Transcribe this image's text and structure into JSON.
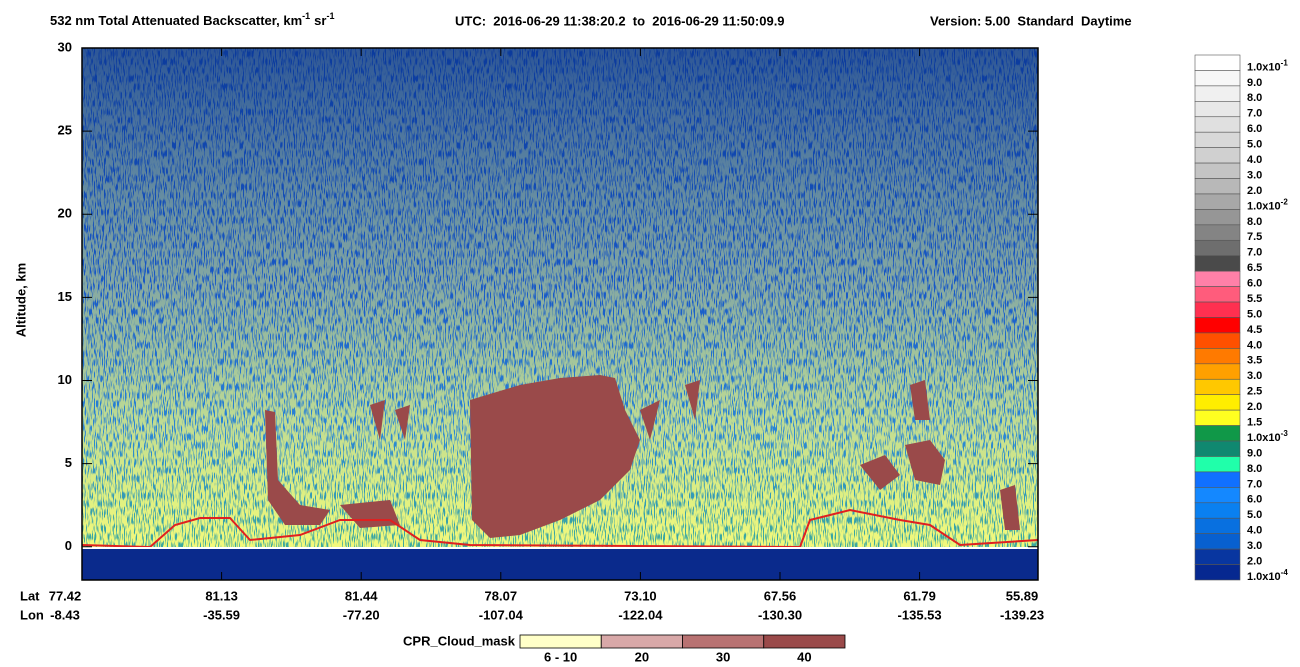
{
  "chart_data": {
    "type": "curtain",
    "title": "532 nm Total Attenuated Backscatter, km",
    "title_sup1": "-1",
    "title_mid": "sr",
    "title_sup2": "-1",
    "time_range": "UTC:  2016-06-29 11:38:20.2  to  2016-06-29 11:50:09.9",
    "version": "Version: 5.00  Standard  Daytime",
    "ylabel": "Altitude, km",
    "ylim": [
      -2,
      30
    ],
    "yticks": [
      0,
      5,
      10,
      15,
      20,
      25,
      30
    ],
    "x_row_labels": [
      "Lat",
      "Lon"
    ],
    "lat": [
      "77.42",
      "81.13",
      "81.44",
      "78.07",
      "73.10",
      "67.56",
      "61.79",
      "55.89"
    ],
    "lon": [
      "-8.43",
      "-35.59",
      "-77.20",
      "-107.04",
      "-122.04",
      "-130.30",
      "-135.53",
      "-139.23"
    ],
    "colorbar": [
      {
        "label": "1.0x10",
        "exp": "-1"
      },
      {
        "label": "9.0"
      },
      {
        "label": "8.0"
      },
      {
        "label": "7.0"
      },
      {
        "label": "6.0"
      },
      {
        "label": "5.0"
      },
      {
        "label": "4.0"
      },
      {
        "label": "3.0"
      },
      {
        "label": "2.0"
      },
      {
        "label": "1.0x10",
        "exp": "-2"
      },
      {
        "label": "8.0"
      },
      {
        "label": "7.5"
      },
      {
        "label": "7.0"
      },
      {
        "label": "6.5"
      },
      {
        "label": "6.0"
      },
      {
        "label": "5.5"
      },
      {
        "label": "5.0"
      },
      {
        "label": "4.5"
      },
      {
        "label": "4.0"
      },
      {
        "label": "3.5"
      },
      {
        "label": "3.0"
      },
      {
        "label": "2.5"
      },
      {
        "label": "2.0"
      },
      {
        "label": "1.5"
      },
      {
        "label": "1.0x10",
        "exp": "-3"
      },
      {
        "label": "9.0"
      },
      {
        "label": "8.0"
      },
      {
        "label": "7.0"
      },
      {
        "label": "6.0"
      },
      {
        "label": "5.0"
      },
      {
        "label": "4.0"
      },
      {
        "label": "3.0"
      },
      {
        "label": "2.0"
      },
      {
        "label": "1.0x10",
        "exp": "-4"
      }
    ],
    "colorbar_colors": [
      "#ffffff",
      "#f7f7f7",
      "#f0f0f0",
      "#e8e8e8",
      "#e0e0e0",
      "#d8d8d8",
      "#d0d0d0",
      "#c4c4c4",
      "#b8b8b8",
      "#a8a8a8",
      "#969696",
      "#848484",
      "#6e6e6e",
      "#4a4a4a",
      "#ff80a8",
      "#ff5c7c",
      "#ff3050",
      "#ff0000",
      "#ff5000",
      "#ff7a00",
      "#ffa000",
      "#ffc800",
      "#ffee00",
      "#ffff20",
      "#109848",
      "#108870",
      "#20ffaa",
      "#1070ff",
      "#1488ff",
      "#0a80f0",
      "#0870e0",
      "#0860d0",
      "#0836a0",
      "#062890"
    ],
    "cpr_title": "CPR_Cloud_mask",
    "cpr_labels": [
      "6 - 10",
      "20",
      "30",
      "40"
    ],
    "cpr_colors": [
      "#ffffc8",
      "#d8a8a8",
      "#b87272",
      "#9a4a4a"
    ]
  }
}
